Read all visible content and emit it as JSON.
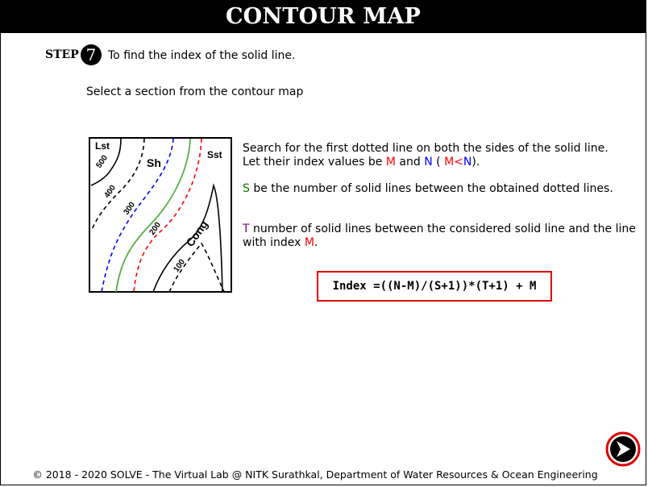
{
  "header": {
    "title": "CONTOUR MAP"
  },
  "step": {
    "label": "STEP",
    "number": "7",
    "text": "To find the index of the solid line."
  },
  "instruction": "Select a section from the contour map",
  "map": {
    "rock_labels": {
      "lst": "Lst",
      "sh": "Sh",
      "sst": "Sst",
      "cong": "Cong"
    },
    "contour_labels": {
      "c500": "500",
      "c400": "400",
      "c300": "300",
      "c200": "200",
      "c100": "100"
    }
  },
  "explanation": {
    "line1": "Search for the first dotted line on both the sides of the solid line.",
    "line2_pre": "Let their index values be ",
    "m": "M",
    "line2_and": " and ",
    "n": "N",
    "line2_open": " ( ",
    "m2": "M",
    "lt": "<",
    "n2": "N",
    "line2_close": ").",
    "s": "S",
    "line3": " be the number of solid lines between the obtained dotted lines.",
    "t": "T",
    "line4": " number of solid lines between the considered solid line and the line with index ",
    "m3": "M",
    "line4_end": "."
  },
  "formula": "Index =((N-M)/(S+1))*(T+1) + M",
  "footer": "© 2018 - 2020 SOLVE - The Virtual Lab @ NITK Surathkal, Department of Water Resources & Ocean Engineering",
  "colors": {
    "red": "#ff0000",
    "blue": "#0000ff",
    "green": "#008000",
    "purple": "#800080",
    "box": "#e00000"
  },
  "icons": {
    "next": "next-arrow-icon"
  }
}
